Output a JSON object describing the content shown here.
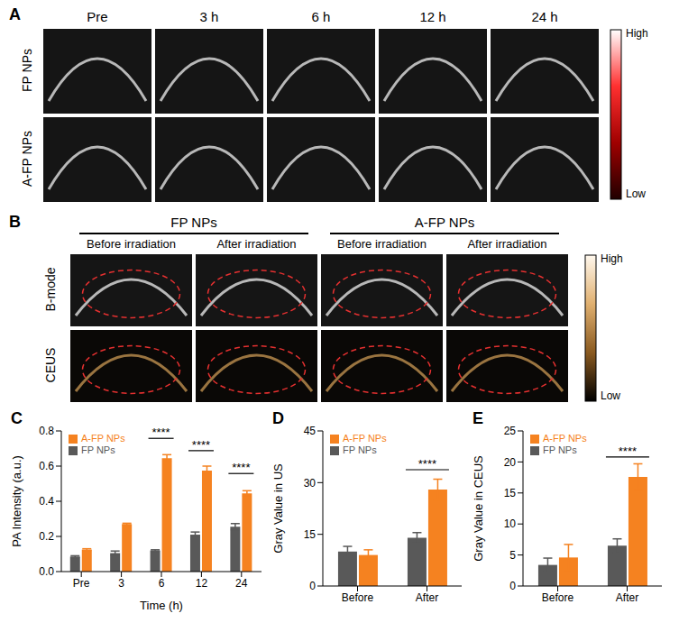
{
  "panel_a": {
    "label": "A",
    "columns": [
      "Pre",
      "3 h",
      "6 h",
      "12 h",
      "24 h"
    ],
    "rows": [
      "FP NPs",
      "A-FP NPs"
    ],
    "colorbar": {
      "high": "High",
      "low": "Low"
    }
  },
  "panel_b": {
    "label": "B",
    "groups": [
      "FP NPs",
      "A-FP NPs"
    ],
    "columns": [
      "Before irradiation",
      "After irradiation"
    ],
    "rows": [
      "B-mode",
      "CEUS"
    ],
    "colorbar": {
      "high": "High",
      "low": "Low"
    }
  },
  "chart_data": [
    {
      "label": "C",
      "type": "bar",
      "categories": [
        "Pre",
        "3",
        "6",
        "12",
        "24"
      ],
      "x_label": "Time (h)",
      "y_label": "PA Intensity (a.u.)",
      "ylim": [
        0,
        0.8
      ],
      "yticks": [
        {
          "value": 0,
          "label": "0.0"
        },
        0.2,
        0.4,
        0.6,
        0.8
      ],
      "grid": false,
      "legend": "upper left",
      "series": [
        {
          "name": "FP  NPs",
          "color": "#595959",
          "values": [
            0.085,
            0.105,
            0.12,
            0.21,
            0.255
          ],
          "errors": [
            0.005,
            0.012,
            0.004,
            0.015,
            0.018
          ]
        },
        {
          "name": "A-FP NPs",
          "color": "#f58220",
          "values": [
            0.125,
            0.27,
            0.645,
            0.575,
            0.445
          ],
          "errors": [
            0.005,
            0.005,
            0.02,
            0.025,
            0.015
          ]
        }
      ],
      "annotations": [
        {
          "category": "6",
          "text": "****"
        },
        {
          "category": "12",
          "text": "****"
        },
        {
          "category": "24",
          "text": "****"
        }
      ]
    },
    {
      "label": "D",
      "type": "bar",
      "categories": [
        "Before",
        "After"
      ],
      "y_label": "Gray Value in US",
      "ylim": [
        0,
        45
      ],
      "yticks": [
        0,
        15,
        30,
        45
      ],
      "grid": false,
      "legend": "upper left",
      "series": [
        {
          "name": "FP NPs",
          "color": "#595959",
          "values": [
            10,
            14
          ],
          "errors": [
            1.5,
            1.5
          ]
        },
        {
          "name": "A-FP NPs",
          "color": "#f58220",
          "values": [
            9,
            28
          ],
          "errors": [
            1.5,
            3
          ]
        }
      ],
      "annotations": [
        {
          "category": "After",
          "text": "****"
        }
      ]
    },
    {
      "label": "E",
      "type": "bar",
      "categories": [
        "Before",
        "After"
      ],
      "y_label": "Gray Value in CEUS",
      "ylim": [
        0,
        25
      ],
      "yticks": [
        0,
        5,
        10,
        15,
        20,
        25
      ],
      "grid": false,
      "legend": "upper left",
      "series": [
        {
          "name": "FP  NPs",
          "color": "#595959",
          "values": [
            3.4,
            6.5
          ],
          "errors": [
            1.1,
            1.1
          ]
        },
        {
          "name": "A-FP NPs",
          "color": "#f58220",
          "values": [
            4.6,
            17.6
          ],
          "errors": [
            2.1,
            2.1
          ]
        }
      ],
      "annotations": [
        {
          "category": "After",
          "text": "****"
        }
      ]
    }
  ]
}
